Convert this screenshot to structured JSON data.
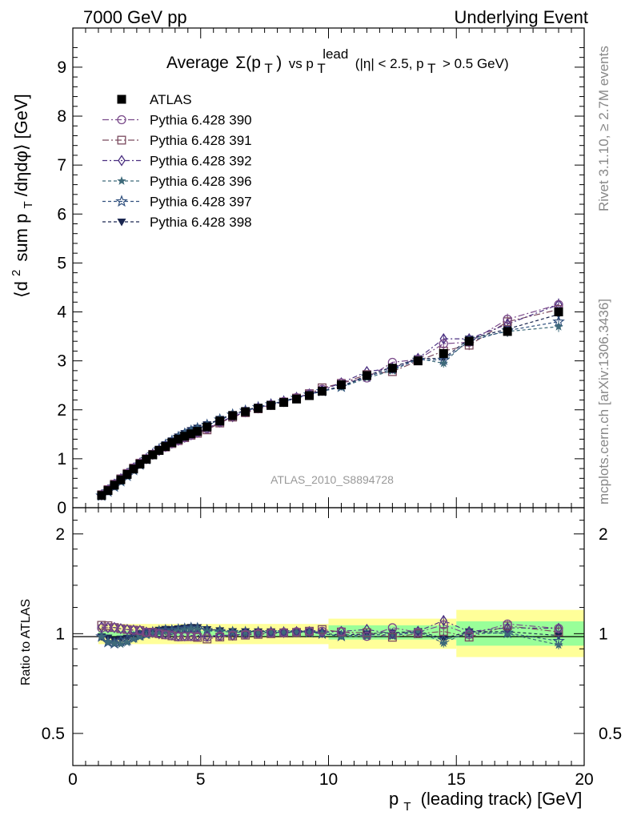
{
  "header": {
    "left": "7000 GeV pp",
    "right": "Underlying Event"
  },
  "side_labels": {
    "rivet": "Rivet 3.1.10, ≥ 2.7M events",
    "mcplots": "mcplots.cern.ch [arXiv:1306.3436]"
  },
  "chart_data": [
    {
      "type": "scatter",
      "title": "Average Σ(p_T) vs p_T^lead (|η| < 2.5, p_T > 0.5 GeV)",
      "title_parts": {
        "average": "Average",
        "sigma": "Σ(p",
        "T1": "T",
        "close": ")",
        "vs": "vs p",
        "T2": "T",
        "lead": "lead",
        "cond1": "(|η| < 2.5, p",
        "T3": "T",
        "cond2": "> 0.5 GeV)"
      },
      "ylabel": "⟨d² sum p_T/dηdφ⟩ [GeV]",
      "ylabel_parts": {
        "a": "⟨d",
        "sup": "2",
        "b": "sum p",
        "sub": "T",
        "c": "/dηdφ⟩ [GeV]"
      },
      "analysis_label": "ATLAS_2010_S8894728",
      "xlim": [
        0,
        20
      ],
      "ylim": [
        0,
        9.8
      ],
      "yticks": [
        "0",
        "1",
        "2",
        "3",
        "4",
        "5",
        "6",
        "7",
        "8",
        "9"
      ],
      "legend_position": "top-left",
      "x": [
        1.125,
        1.375,
        1.625,
        1.875,
        2.125,
        2.375,
        2.625,
        2.875,
        3.125,
        3.375,
        3.625,
        3.875,
        4.125,
        4.375,
        4.625,
        4.875,
        5.25,
        5.75,
        6.25,
        6.75,
        7.25,
        7.75,
        8.25,
        8.75,
        9.25,
        9.75,
        10.5,
        11.5,
        12.5,
        13.5,
        14.5,
        15.5,
        17.0,
        19.0
      ],
      "series": [
        {
          "name": "ATLAS",
          "marker": "square-filled",
          "color": "#000000",
          "values": [
            0.25,
            0.35,
            0.46,
            0.57,
            0.68,
            0.79,
            0.89,
            0.99,
            1.08,
            1.17,
            1.25,
            1.33,
            1.4,
            1.46,
            1.51,
            1.56,
            1.65,
            1.77,
            1.88,
            1.96,
            2.03,
            2.09,
            2.15,
            2.22,
            2.29,
            2.38,
            2.51,
            2.7,
            2.85,
            3.0,
            3.15,
            3.4,
            3.6,
            4.0
          ]
        },
        {
          "name": "Pythia 6.428 390",
          "marker": "circle-open",
          "color": "#7a4a8a",
          "values": [
            0.26,
            0.365,
            0.48,
            0.59,
            0.7,
            0.81,
            0.91,
            1.0,
            1.09,
            1.17,
            1.24,
            1.31,
            1.37,
            1.43,
            1.48,
            1.53,
            1.61,
            1.74,
            1.86,
            1.95,
            2.03,
            2.1,
            2.17,
            2.25,
            2.33,
            2.42,
            2.55,
            2.65,
            2.97,
            3.03,
            3.35,
            3.38,
            3.85,
            4.15
          ]
        },
        {
          "name": "Pythia 6.428 391",
          "marker": "square-open",
          "color": "#7a4a5e",
          "values": [
            0.265,
            0.37,
            0.48,
            0.59,
            0.7,
            0.81,
            0.91,
            1.0,
            1.09,
            1.17,
            1.24,
            1.31,
            1.37,
            1.43,
            1.48,
            1.52,
            1.59,
            1.73,
            1.85,
            1.94,
            2.02,
            2.09,
            2.16,
            2.24,
            2.33,
            2.45,
            2.54,
            2.72,
            2.78,
            3.0,
            3.2,
            3.32,
            3.8,
            4.05
          ]
        },
        {
          "name": "Pythia 6.428 392",
          "marker": "diamond-open",
          "color": "#4a2f80",
          "values": [
            0.262,
            0.365,
            0.48,
            0.59,
            0.7,
            0.81,
            0.91,
            1.0,
            1.09,
            1.17,
            1.25,
            1.32,
            1.38,
            1.44,
            1.49,
            1.54,
            1.62,
            1.75,
            1.86,
            1.96,
            2.04,
            2.11,
            2.17,
            2.25,
            2.32,
            2.4,
            2.55,
            2.78,
            2.85,
            3.05,
            3.45,
            3.45,
            3.75,
            4.15
          ]
        },
        {
          "name": "Pythia 6.428 396",
          "marker": "star-filled",
          "color": "#3e6a7a",
          "values": [
            0.245,
            0.33,
            0.43,
            0.53,
            0.64,
            0.76,
            0.87,
            0.98,
            1.08,
            1.18,
            1.27,
            1.35,
            1.43,
            1.5,
            1.56,
            1.61,
            1.68,
            1.8,
            1.9,
            1.98,
            2.05,
            2.11,
            2.17,
            2.24,
            2.31,
            2.38,
            2.46,
            2.65,
            2.8,
            3.05,
            2.95,
            3.45,
            3.6,
            3.7
          ]
        },
        {
          "name": "Pythia 6.428 397",
          "marker": "star-open",
          "color": "#30507e",
          "values": [
            0.245,
            0.33,
            0.43,
            0.54,
            0.65,
            0.77,
            0.88,
            0.99,
            1.09,
            1.19,
            1.28,
            1.36,
            1.44,
            1.51,
            1.57,
            1.62,
            1.69,
            1.8,
            1.9,
            1.98,
            2.05,
            2.11,
            2.17,
            2.24,
            2.31,
            2.38,
            2.47,
            2.68,
            2.83,
            3.02,
            3.02,
            3.4,
            3.62,
            3.8
          ]
        },
        {
          "name": "Pythia 6.428 398",
          "marker": "triangle-down-filled",
          "color": "#1a2650",
          "values": [
            0.245,
            0.34,
            0.44,
            0.55,
            0.66,
            0.78,
            0.89,
            1.0,
            1.1,
            1.2,
            1.29,
            1.37,
            1.45,
            1.52,
            1.58,
            1.63,
            1.7,
            1.81,
            1.91,
            1.99,
            2.06,
            2.12,
            2.18,
            2.25,
            2.32,
            2.39,
            2.48,
            2.7,
            2.87,
            3.05,
            3.05,
            3.45,
            3.65,
            3.95
          ]
        }
      ]
    },
    {
      "type": "scatter",
      "ylabel": "Ratio to ATLAS",
      "xlabel": "p_T (leading track) [GeV]",
      "xlabel_parts": {
        "p": "p",
        "sub": "T",
        "rest": "(leading track) [GeV]"
      },
      "xlim": [
        0,
        20
      ],
      "ylim": [
        0.4,
        2.4
      ],
      "yscale": "log",
      "xticks": [
        "0",
        "5",
        "10",
        "15",
        "20"
      ],
      "yticks": [
        "0.5",
        "1",
        "2"
      ],
      "uncertainty_bands": [
        {
          "x0": 1.0,
          "x1": 10.0,
          "stat_sys": [
            0.93,
            1.07
          ],
          "stat": [
            0.98,
            1.02
          ]
        },
        {
          "x0": 10.0,
          "x1": 15.0,
          "stat_sys": [
            0.9,
            1.11
          ],
          "stat": [
            0.96,
            1.06
          ]
        },
        {
          "x0": 15.0,
          "x1": 20.0,
          "stat_sys": [
            0.85,
            1.18
          ],
          "stat": [
            0.92,
            1.09
          ]
        }
      ]
    }
  ]
}
